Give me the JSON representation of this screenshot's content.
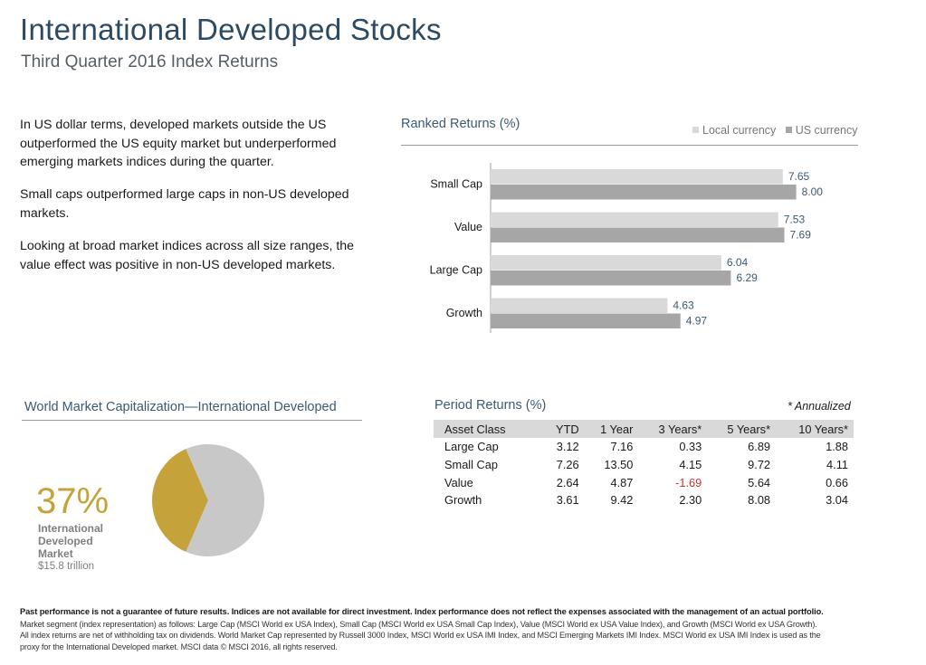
{
  "header": {
    "title": "International Developed Stocks",
    "subtitle": "Third Quarter 2016 Index Returns"
  },
  "intro": {
    "paragraphs": [
      "In US dollar terms, developed markets outside the US outperformed the US equity market but underperformed emerging markets indices during the quarter.",
      "Small caps outperformed large caps in non-US developed markets.",
      "Looking at broad market indices across all size ranges, the value effect was positive in non-US developed markets."
    ]
  },
  "ranked": {
    "title": "Ranked Returns (%)"
  },
  "chart_data": [
    {
      "type": "bar",
      "orientation": "horizontal",
      "title": "Ranked Returns (%)",
      "categories": [
        "Small Cap",
        "Value",
        "Large Cap",
        "Growth"
      ],
      "series": [
        {
          "name": "Local currency",
          "color": "#d9d9d9",
          "values": [
            7.65,
            7.53,
            6.04,
            4.63
          ]
        },
        {
          "name": "US currency",
          "color": "#a6a6a6",
          "values": [
            8.0,
            7.69,
            6.29,
            4.97
          ]
        }
      ],
      "value_labels": [
        [
          "7.65",
          "7.53",
          "6.04",
          "4.63"
        ],
        [
          "8.00",
          "7.69",
          "6.29",
          "4.97"
        ]
      ],
      "legend_position": "top-right",
      "xlim": [
        0,
        8.5
      ],
      "grid": false
    },
    {
      "type": "pie",
      "title": "World Market Capitalization—International Developed",
      "slices": [
        {
          "label": "International Developed Market",
          "value": 37,
          "color": "#c5a33a"
        },
        {
          "label": "",
          "value": 63,
          "color": "#c8c8c8"
        }
      ]
    }
  ],
  "pie": {
    "title": "World Market Capitalization—International Developed",
    "percent_text": "37%",
    "label": "International Developed Market",
    "value_text": "$15.8 trillion"
  },
  "period": {
    "title": "Period Returns (%)",
    "annotation": "* Annualized",
    "columns": [
      "Asset Class",
      "YTD",
      "1 Year",
      "3 Years*",
      "5 Years*",
      "10 Years*"
    ],
    "rows": [
      [
        "Large Cap",
        "3.12",
        "7.16",
        "0.33",
        "6.89",
        "1.88"
      ],
      [
        "Small Cap",
        "7.26",
        "13.50",
        "4.15",
        "9.72",
        "4.11"
      ],
      [
        "Value",
        "2.64",
        "4.87",
        "-1.69",
        "5.64",
        "0.66"
      ],
      [
        "Growth",
        "3.61",
        "9.42",
        "2.30",
        "8.08",
        "3.04"
      ]
    ]
  },
  "footer": {
    "bold": "Past performance is not a guarantee of future results. Indices are not available for direct investment. Index performance does not reflect the expenses associated with the management of an actual portfolio.",
    "text": "Market segment (index representation) as follows: Large Cap (MSCI World ex USA Index), Small Cap (MSCI World ex USA Small Cap Index), Value (MSCI World ex USA Value Index), and Growth (MSCI World ex USA Growth). All index returns are net of withholding tax on dividends. World Market Cap represented by Russell 3000 Index, MSCI World ex USA IMI Index, and MSCI Emerging Markets IMI Index. MSCI World ex USA IMI Index is used as the proxy for the International Developed market. MSCI data © MSCI 2016, all rights reserved."
  }
}
